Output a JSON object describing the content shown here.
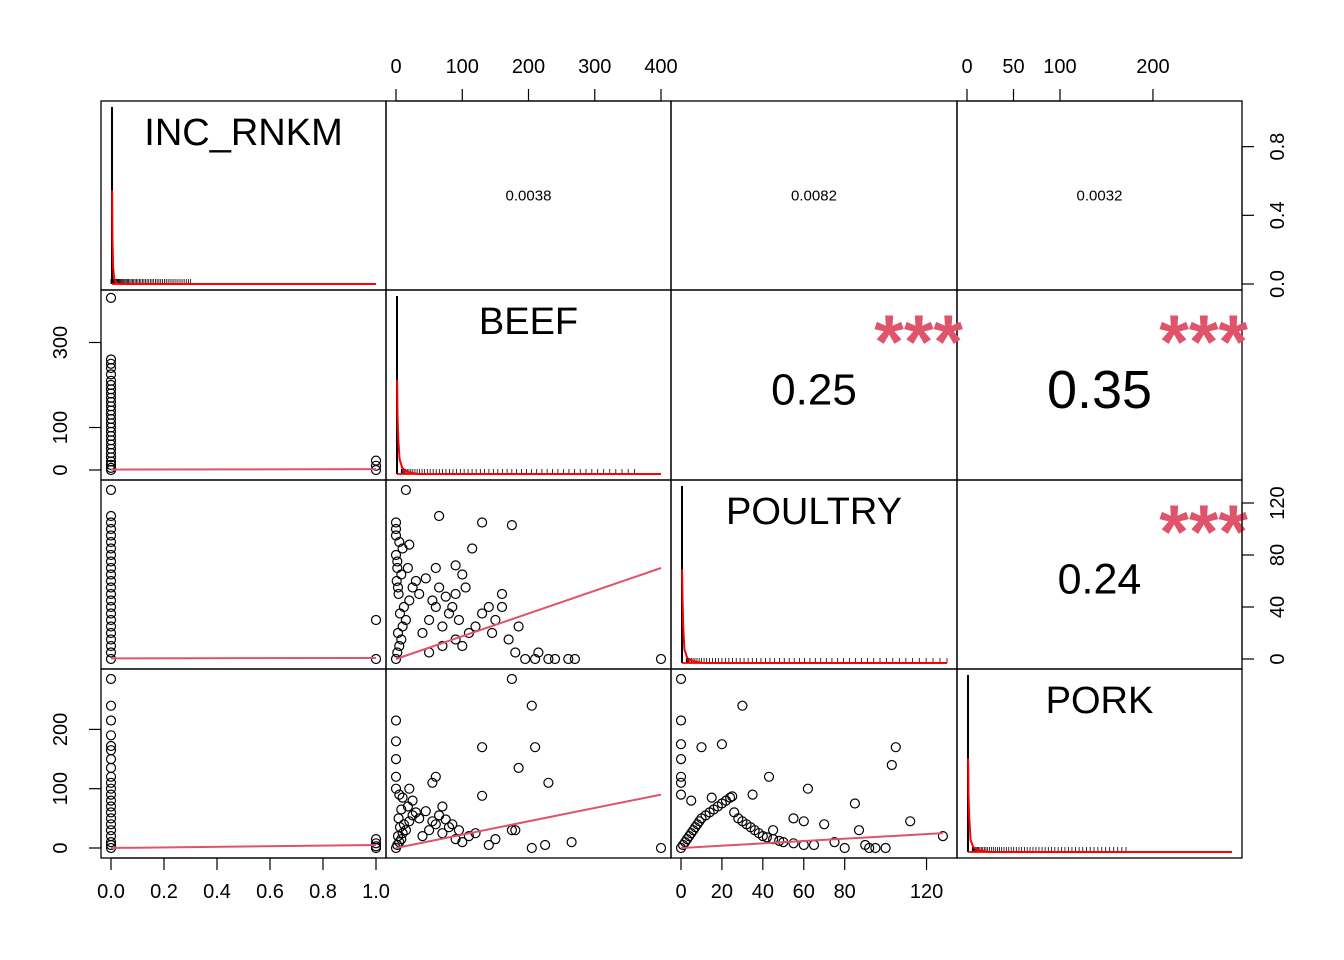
{
  "colors": {
    "fit": "#DF536B",
    "density": "#FF0000",
    "stars": "#DF536B",
    "ink": "#000000"
  },
  "chart_data": {
    "type": "scatter",
    "variables": [
      "INC_RNKM",
      "BEEF",
      "POULTRY",
      "PORK"
    ],
    "grid": false,
    "axes": {
      "INC_RNKM": {
        "range": [
          0,
          1
        ],
        "ticks": [
          0.0,
          0.2,
          0.4,
          0.6,
          0.8,
          1.0
        ],
        "tick_labels": [
          "0.0",
          "0.2",
          "0.4",
          "0.6",
          "0.8",
          "1.0"
        ]
      },
      "BEEF": {
        "range": [
          0,
          400
        ],
        "ticks": [
          0,
          100,
          200,
          300,
          400
        ],
        "tick_labels": [
          "0",
          "100",
          "200",
          "300",
          "400"
        ],
        "row_ticks": [
          0,
          100,
          300
        ],
        "row_tick_labels": [
          "0",
          "100",
          "300"
        ]
      },
      "POULTRY": {
        "range": [
          0,
          130
        ],
        "ticks": [
          0,
          20,
          40,
          60,
          80,
          120
        ],
        "tick_labels": [
          "0",
          "20",
          "40",
          "60",
          "80",
          "120"
        ],
        "row_ticks": [
          0,
          40,
          80,
          120
        ],
        "row_tick_labels": [
          "0",
          "40",
          "80",
          "120"
        ]
      },
      "PORK": {
        "range": [
          0,
          285
        ],
        "ticks": [
          0,
          50,
          100,
          200
        ],
        "tick_labels": [
          "0",
          "50",
          "100",
          "200"
        ],
        "row_ticks": [
          0,
          100,
          200
        ],
        "row_tick_labels": [
          "0",
          "100",
          "200"
        ]
      },
      "INC_RNKM_density": {
        "ticks": [
          0.0,
          0.4,
          0.8
        ],
        "tick_labels": [
          "0.0",
          "0.4",
          "0.8"
        ]
      }
    },
    "correlations": [
      {
        "row": 0,
        "col": 1,
        "value": "0.0038",
        "stars": ""
      },
      {
        "row": 0,
        "col": 2,
        "value": "0.0082",
        "stars": ""
      },
      {
        "row": 0,
        "col": 3,
        "value": "0.0032",
        "stars": ""
      },
      {
        "row": 1,
        "col": 2,
        "value": "0.25",
        "stars": "***"
      },
      {
        "row": 1,
        "col": 3,
        "value": "0.35",
        "stars": "***"
      },
      {
        "row": 2,
        "col": 3,
        "value": "0.24",
        "stars": "***"
      }
    ],
    "scatter_panels": [
      {
        "row": 1,
        "col": 0,
        "x": "INC_RNKM",
        "y": "BEEF",
        "points": [
          [
            0,
            0
          ],
          [
            0,
            5
          ],
          [
            0,
            12
          ],
          [
            0,
            20
          ],
          [
            0,
            30
          ],
          [
            0,
            40
          ],
          [
            0,
            50
          ],
          [
            0,
            60
          ],
          [
            0,
            70
          ],
          [
            0,
            80
          ],
          [
            0,
            90
          ],
          [
            0,
            100
          ],
          [
            0,
            110
          ],
          [
            0,
            120
          ],
          [
            0,
            130
          ],
          [
            0,
            140
          ],
          [
            0,
            150
          ],
          [
            0,
            160
          ],
          [
            0,
            170
          ],
          [
            0,
            180
          ],
          [
            0,
            190
          ],
          [
            0,
            200
          ],
          [
            0,
            210
          ],
          [
            0,
            225
          ],
          [
            0,
            240
          ],
          [
            0,
            250
          ],
          [
            0,
            260
          ],
          [
            0,
            405
          ],
          [
            1,
            0
          ],
          [
            1,
            10
          ],
          [
            1,
            22
          ]
        ],
        "fit": [
          [
            0,
            1
          ],
          [
            1,
            2
          ]
        ]
      },
      {
        "row": 2,
        "col": 0,
        "x": "INC_RNKM",
        "y": "POULTRY",
        "points": [
          [
            0,
            0
          ],
          [
            0,
            5
          ],
          [
            0,
            10
          ],
          [
            0,
            15
          ],
          [
            0,
            20
          ],
          [
            0,
            25
          ],
          [
            0,
            30
          ],
          [
            0,
            35
          ],
          [
            0,
            40
          ],
          [
            0,
            45
          ],
          [
            0,
            50
          ],
          [
            0,
            55
          ],
          [
            0,
            60
          ],
          [
            0,
            65
          ],
          [
            0,
            70
          ],
          [
            0,
            75
          ],
          [
            0,
            80
          ],
          [
            0,
            85
          ],
          [
            0,
            90
          ],
          [
            0,
            95
          ],
          [
            0,
            100
          ],
          [
            0,
            105
          ],
          [
            0,
            110
          ],
          [
            0,
            130
          ],
          [
            1,
            0
          ],
          [
            1,
            30
          ]
        ],
        "fit": [
          [
            0,
            0.5
          ],
          [
            1,
            0.8
          ]
        ]
      },
      {
        "row": 3,
        "col": 0,
        "x": "INC_RNKM",
        "y": "PORK",
        "points": [
          [
            0,
            0
          ],
          [
            0,
            5
          ],
          [
            0,
            10
          ],
          [
            0,
            20
          ],
          [
            0,
            30
          ],
          [
            0,
            40
          ],
          [
            0,
            50
          ],
          [
            0,
            60
          ],
          [
            0,
            70
          ],
          [
            0,
            80
          ],
          [
            0,
            90
          ],
          [
            0,
            100
          ],
          [
            0,
            110
          ],
          [
            0,
            120
          ],
          [
            0,
            135
          ],
          [
            0,
            150
          ],
          [
            0,
            165
          ],
          [
            0,
            172
          ],
          [
            0,
            190
          ],
          [
            0,
            215
          ],
          [
            0,
            240
          ],
          [
            0,
            285
          ],
          [
            1,
            0
          ],
          [
            1,
            3
          ],
          [
            1,
            8
          ],
          [
            1,
            15
          ]
        ],
        "fit": [
          [
            0,
            0
          ],
          [
            1,
            5
          ]
        ]
      },
      {
        "row": 2,
        "col": 1,
        "x": "BEEF",
        "y": "POULTRY",
        "points": [
          [
            0,
            0
          ],
          [
            2,
            5
          ],
          [
            5,
            10
          ],
          [
            8,
            15
          ],
          [
            3,
            20
          ],
          [
            10,
            25
          ],
          [
            15,
            30
          ],
          [
            6,
            35
          ],
          [
            12,
            40
          ],
          [
            20,
            45
          ],
          [
            4,
            50
          ],
          [
            25,
            55
          ],
          [
            30,
            60
          ],
          [
            8,
            65
          ],
          [
            18,
            70
          ],
          [
            2,
            75
          ],
          [
            40,
            20
          ],
          [
            50,
            30
          ],
          [
            60,
            40
          ],
          [
            35,
            50
          ],
          [
            45,
            62
          ],
          [
            70,
            25
          ],
          [
            80,
            35
          ],
          [
            90,
            15
          ],
          [
            100,
            10
          ],
          [
            55,
            45
          ],
          [
            65,
            55
          ],
          [
            75,
            48
          ],
          [
            85,
            40
          ],
          [
            95,
            30
          ],
          [
            110,
            20
          ],
          [
            120,
            25
          ],
          [
            130,
            35
          ],
          [
            100,
            65
          ],
          [
            90,
            72
          ],
          [
            105,
            55
          ],
          [
            140,
            40
          ],
          [
            150,
            30
          ],
          [
            160,
            50
          ],
          [
            170,
            15
          ],
          [
            180,
            5
          ],
          [
            185,
            25
          ],
          [
            195,
            0
          ],
          [
            210,
            0
          ],
          [
            215,
            5
          ],
          [
            230,
            0
          ],
          [
            240,
            0
          ],
          [
            260,
            0
          ],
          [
            270,
            0
          ],
          [
            400,
            0
          ],
          [
            0,
            95
          ],
          [
            0,
            100
          ],
          [
            0,
            105
          ],
          [
            5,
            90
          ],
          [
            10,
            85
          ],
          [
            65,
            110
          ],
          [
            130,
            105
          ],
          [
            175,
            103
          ],
          [
            15,
            130
          ],
          [
            115,
            85
          ],
          [
            90,
            50
          ],
          [
            145,
            20
          ],
          [
            160,
            40
          ],
          [
            60,
            70
          ],
          [
            20,
            88
          ],
          [
            0,
            80
          ],
          [
            2,
            70
          ],
          [
            1,
            60
          ],
          [
            3,
            55
          ],
          [
            70,
            10
          ],
          [
            50,
            5
          ]
        ],
        "fit": [
          [
            0,
            0
          ],
          [
            400,
            70
          ]
        ]
      },
      {
        "row": 3,
        "col": 1,
        "x": "BEEF",
        "y": "PORK",
        "points": [
          [
            0,
            0
          ],
          [
            2,
            5
          ],
          [
            5,
            10
          ],
          [
            8,
            15
          ],
          [
            3,
            20
          ],
          [
            10,
            25
          ],
          [
            15,
            30
          ],
          [
            6,
            35
          ],
          [
            12,
            40
          ],
          [
            20,
            45
          ],
          [
            4,
            50
          ],
          [
            25,
            55
          ],
          [
            30,
            60
          ],
          [
            8,
            65
          ],
          [
            18,
            70
          ],
          [
            40,
            20
          ],
          [
            50,
            30
          ],
          [
            60,
            40
          ],
          [
            35,
            50
          ],
          [
            45,
            62
          ],
          [
            70,
            25
          ],
          [
            80,
            35
          ],
          [
            90,
            15
          ],
          [
            100,
            10
          ],
          [
            55,
            45
          ],
          [
            65,
            55
          ],
          [
            75,
            48
          ],
          [
            85,
            40
          ],
          [
            95,
            30
          ],
          [
            110,
            20
          ],
          [
            120,
            25
          ],
          [
            0,
            215
          ],
          [
            0,
            180
          ],
          [
            0,
            150
          ],
          [
            0,
            120
          ],
          [
            0,
            100
          ],
          [
            5,
            90
          ],
          [
            10,
            85
          ],
          [
            25,
            80
          ],
          [
            60,
            120
          ],
          [
            130,
            88
          ],
          [
            130,
            170
          ],
          [
            175,
            285
          ],
          [
            185,
            135
          ],
          [
            205,
            240
          ],
          [
            210,
            170
          ],
          [
            230,
            110
          ],
          [
            205,
            0
          ],
          [
            225,
            5
          ],
          [
            265,
            10
          ],
          [
            400,
            0
          ],
          [
            140,
            5
          ],
          [
            150,
            15
          ],
          [
            175,
            30
          ],
          [
            180,
            30
          ],
          [
            20,
            100
          ],
          [
            55,
            110
          ],
          [
            70,
            70
          ]
        ],
        "fit": [
          [
            0,
            0
          ],
          [
            400,
            90
          ]
        ]
      },
      {
        "row": 3,
        "col": 2,
        "x": "POULTRY",
        "y": "PORK",
        "points": [
          [
            0,
            0
          ],
          [
            1,
            5
          ],
          [
            2,
            10
          ],
          [
            3,
            15
          ],
          [
            4,
            20
          ],
          [
            5,
            25
          ],
          [
            6,
            30
          ],
          [
            7,
            35
          ],
          [
            8,
            40
          ],
          [
            9,
            45
          ],
          [
            10,
            50
          ],
          [
            12,
            55
          ],
          [
            14,
            60
          ],
          [
            16,
            65
          ],
          [
            18,
            70
          ],
          [
            20,
            75
          ],
          [
            22,
            80
          ],
          [
            24,
            85
          ],
          [
            26,
            60
          ],
          [
            28,
            50
          ],
          [
            30,
            45
          ],
          [
            32,
            40
          ],
          [
            34,
            35
          ],
          [
            36,
            30
          ],
          [
            38,
            25
          ],
          [
            40,
            20
          ],
          [
            42,
            18
          ],
          [
            45,
            15
          ],
          [
            48,
            12
          ],
          [
            50,
            10
          ],
          [
            55,
            8
          ],
          [
            60,
            5
          ],
          [
            0,
            90
          ],
          [
            0,
            110
          ],
          [
            0,
            120
          ],
          [
            0,
            150
          ],
          [
            0,
            175
          ],
          [
            0,
            215
          ],
          [
            0,
            285
          ],
          [
            10,
            170
          ],
          [
            20,
            175
          ],
          [
            30,
            240
          ],
          [
            43,
            120
          ],
          [
            60,
            45
          ],
          [
            62,
            100
          ],
          [
            65,
            5
          ],
          [
            70,
            40
          ],
          [
            75,
            10
          ],
          [
            80,
            0
          ],
          [
            85,
            75
          ],
          [
            87,
            30
          ],
          [
            90,
            5
          ],
          [
            92,
            0
          ],
          [
            95,
            0
          ],
          [
            100,
            0
          ],
          [
            103,
            140
          ],
          [
            105,
            170
          ],
          [
            112,
            45
          ],
          [
            128,
            20
          ],
          [
            5,
            80
          ],
          [
            15,
            85
          ],
          [
            25,
            87
          ],
          [
            35,
            90
          ],
          [
            45,
            30
          ],
          [
            55,
            50
          ]
        ],
        "fit": [
          [
            0,
            0
          ],
          [
            128,
            25
          ]
        ]
      }
    ]
  }
}
